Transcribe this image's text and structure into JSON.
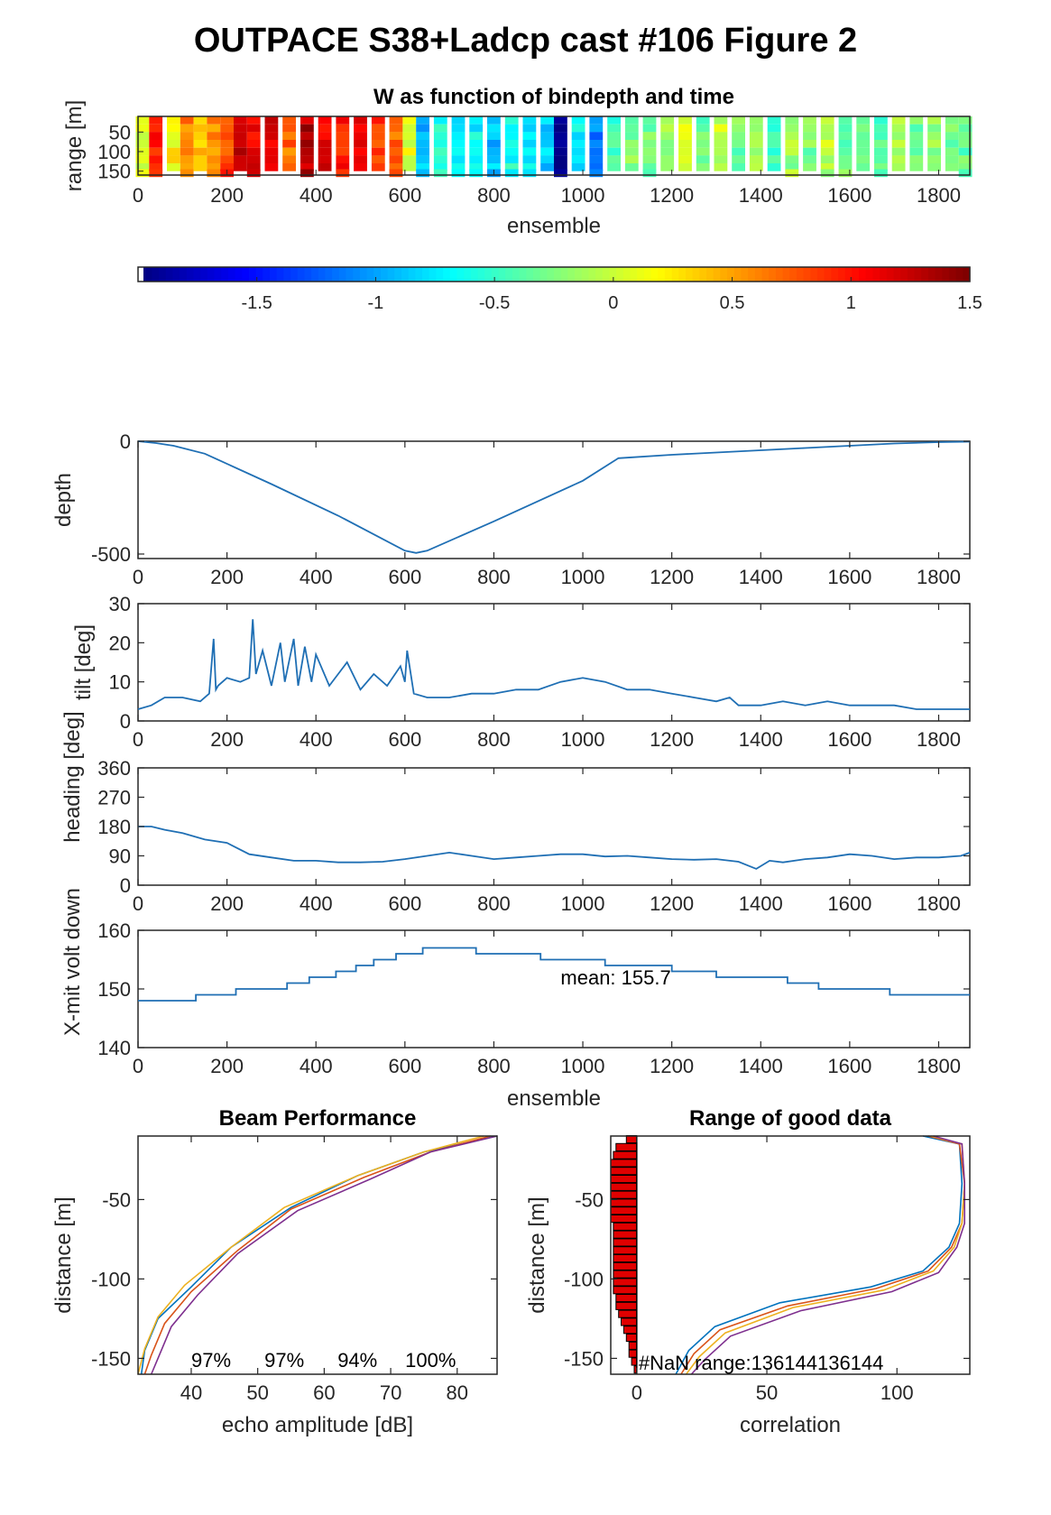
{
  "figure": {
    "title": "OUTPACE S38+Ladcp cast #106 Figure 2"
  },
  "colors": {
    "line_blue": "#1f6fb4",
    "beam1": "#0072bd",
    "beam2": "#d95319",
    "beam3": "#edb120",
    "beam4": "#7e2f8e",
    "nan_bar": "#e00000"
  },
  "chart_data": [
    {
      "id": "w_image",
      "type": "heatmap",
      "title": "W as function of bindepth and time",
      "xlabel": "ensemble",
      "ylabel": "range [m]",
      "xlim": [
        0,
        1870
      ],
      "ylim": [
        160,
        10
      ],
      "xticks": [
        0,
        200,
        400,
        600,
        800,
        1000,
        1200,
        1400,
        1600,
        1800
      ],
      "yticks": [
        50,
        100,
        150
      ],
      "column_mean_w": [
        {
          "x": 10,
          "w": 0.1
        },
        {
          "x": 40,
          "w": 1.0
        },
        {
          "x": 80,
          "w": 0.2
        },
        {
          "x": 110,
          "w": 0.6
        },
        {
          "x": 140,
          "w": 0.4
        },
        {
          "x": 170,
          "w": 0.55
        },
        {
          "x": 200,
          "w": 0.85
        },
        {
          "x": 230,
          "w": 1.25
        },
        {
          "x": 260,
          "w": 1.1
        },
        {
          "x": 300,
          "w": 1.2
        },
        {
          "x": 340,
          "w": 0.7
        },
        {
          "x": 380,
          "w": 1.3
        },
        {
          "x": 420,
          "w": 1.15
        },
        {
          "x": 460,
          "w": 1.0
        },
        {
          "x": 500,
          "w": 1.2
        },
        {
          "x": 540,
          "w": 0.9
        },
        {
          "x": 580,
          "w": 0.75
        },
        {
          "x": 610,
          "w": 0.1
        },
        {
          "x": 640,
          "w": -0.9
        },
        {
          "x": 680,
          "w": -0.6
        },
        {
          "x": 720,
          "w": -0.8
        },
        {
          "x": 760,
          "w": -0.7
        },
        {
          "x": 800,
          "w": -0.9
        },
        {
          "x": 840,
          "w": -0.6
        },
        {
          "x": 880,
          "w": -0.75
        },
        {
          "x": 920,
          "w": -0.85
        },
        {
          "x": 950,
          "w": -1.9
        },
        {
          "x": 990,
          "w": -0.7
        },
        {
          "x": 1030,
          "w": -1.1
        },
        {
          "x": 1070,
          "w": -0.5
        },
        {
          "x": 1110,
          "w": -0.25
        },
        {
          "x": 1150,
          "w": -0.3
        },
        {
          "x": 1190,
          "w": -0.2
        },
        {
          "x": 1230,
          "w": 0.05
        },
        {
          "x": 1270,
          "w": -0.35
        },
        {
          "x": 1310,
          "w": 0.0
        },
        {
          "x": 1350,
          "w": -0.3
        },
        {
          "x": 1390,
          "w": -0.1
        },
        {
          "x": 1430,
          "w": -0.4
        },
        {
          "x": 1470,
          "w": -0.15
        },
        {
          "x": 1510,
          "w": -0.25
        },
        {
          "x": 1550,
          "w": -0.05
        },
        {
          "x": 1590,
          "w": -0.3
        },
        {
          "x": 1630,
          "w": -0.2
        },
        {
          "x": 1670,
          "w": -0.4
        },
        {
          "x": 1710,
          "w": -0.1
        },
        {
          "x": 1750,
          "w": -0.3
        },
        {
          "x": 1790,
          "w": -0.15
        },
        {
          "x": 1830,
          "w": -0.25
        },
        {
          "x": 1860,
          "w": -0.35
        }
      ]
    },
    {
      "id": "colorbar",
      "type": "colorbar",
      "clim": [
        -2,
        1.5
      ],
      "ticks": [
        -1.5,
        -1,
        -0.5,
        0,
        0.5,
        1,
        1.5
      ],
      "ticklabels": [
        "-1.5",
        "-1",
        "-0.5",
        "0",
        "0.5",
        "1",
        "1.5"
      ]
    },
    {
      "id": "depth",
      "type": "line",
      "ylabel": "depth",
      "xlim": [
        0,
        1870
      ],
      "ylim": [
        -520,
        0
      ],
      "xticks": [
        0,
        200,
        400,
        600,
        800,
        1000,
        1200,
        1400,
        1600,
        1800
      ],
      "yticks": [
        0,
        -500
      ],
      "x": [
        0,
        40,
        80,
        150,
        300,
        450,
        600,
        625,
        650,
        800,
        1000,
        1080,
        1200,
        1300,
        1400,
        1500,
        1600,
        1700,
        1800,
        1870
      ],
      "y": [
        0,
        -8,
        -20,
        -55,
        -190,
        -330,
        -485,
        -495,
        -485,
        -355,
        -175,
        -75,
        -60,
        -50,
        -40,
        -30,
        -20,
        -10,
        -4,
        -2
      ]
    },
    {
      "id": "tilt",
      "type": "line",
      "ylabel": "tilt [deg]",
      "xlim": [
        0,
        1870
      ],
      "ylim": [
        0,
        30
      ],
      "xticks": [
        0,
        200,
        400,
        600,
        800,
        1000,
        1200,
        1400,
        1600,
        1800
      ],
      "yticks": [
        0,
        10,
        20,
        30
      ],
      "x": [
        0,
        30,
        60,
        100,
        140,
        160,
        170,
        175,
        180,
        200,
        230,
        250,
        258,
        265,
        280,
        300,
        320,
        330,
        350,
        360,
        375,
        390,
        400,
        430,
        470,
        500,
        530,
        560,
        590,
        600,
        605,
        620,
        650,
        700,
        750,
        800,
        850,
        900,
        950,
        1000,
        1050,
        1100,
        1150,
        1200,
        1250,
        1300,
        1330,
        1350,
        1400,
        1450,
        1500,
        1550,
        1600,
        1650,
        1700,
        1750,
        1800,
        1850,
        1870
      ],
      "y": [
        3,
        4,
        6,
        6,
        5,
        7,
        21,
        8,
        9,
        11,
        10,
        11,
        26,
        12,
        18,
        9,
        20,
        10,
        21,
        9,
        19,
        10,
        17,
        9,
        15,
        8,
        12,
        9,
        14,
        10,
        18,
        7,
        6,
        6,
        7,
        7,
        8,
        8,
        10,
        11,
        10,
        8,
        8,
        7,
        6,
        5,
        6,
        4,
        4,
        5,
        4,
        5,
        4,
        4,
        4,
        3,
        3,
        3,
        3
      ]
    },
    {
      "id": "heading",
      "type": "line",
      "ylabel": "heading [deg]",
      "xlim": [
        0,
        1870
      ],
      "ylim": [
        0,
        360
      ],
      "xticks": [
        0,
        200,
        400,
        600,
        800,
        1000,
        1200,
        1400,
        1600,
        1800
      ],
      "yticks": [
        0,
        90,
        180,
        270,
        360
      ],
      "x": [
        0,
        30,
        60,
        100,
        150,
        200,
        250,
        300,
        350,
        400,
        450,
        500,
        550,
        600,
        650,
        700,
        750,
        800,
        850,
        900,
        950,
        1000,
        1050,
        1100,
        1150,
        1200,
        1250,
        1300,
        1350,
        1390,
        1420,
        1450,
        1500,
        1550,
        1600,
        1650,
        1700,
        1750,
        1800,
        1850,
        1870
      ],
      "y": [
        180,
        180,
        170,
        160,
        140,
        130,
        95,
        85,
        75,
        75,
        70,
        70,
        72,
        80,
        90,
        100,
        90,
        80,
        85,
        90,
        95,
        95,
        88,
        90,
        85,
        80,
        78,
        80,
        72,
        50,
        75,
        70,
        80,
        85,
        95,
        90,
        80,
        85,
        85,
        90,
        100
      ]
    },
    {
      "id": "xmit_volt",
      "type": "line",
      "ylabel": "X-mit volt down",
      "xlabel": "ensemble",
      "xlim": [
        0,
        1870
      ],
      "ylim": [
        140,
        160
      ],
      "xticks": [
        0,
        200,
        400,
        600,
        800,
        1000,
        1200,
        1400,
        1600,
        1800
      ],
      "yticks": [
        140,
        150,
        160
      ],
      "annotation": "mean: 155.7",
      "annotation_at": [
        950,
        152
      ],
      "x": [
        0,
        130,
        130,
        220,
        220,
        335,
        335,
        385,
        385,
        445,
        445,
        490,
        490,
        530,
        530,
        580,
        580,
        640,
        640,
        760,
        760,
        905,
        905,
        1050,
        1050,
        1200,
        1200,
        1300,
        1300,
        1460,
        1460,
        1530,
        1530,
        1690,
        1690,
        1870
      ],
      "y": [
        148,
        148,
        149,
        149,
        150,
        150,
        151,
        151,
        152,
        152,
        153,
        153,
        154,
        154,
        155,
        155,
        156,
        156,
        157,
        157,
        156,
        156,
        155,
        155,
        154,
        154,
        153,
        153,
        152,
        152,
        151,
        151,
        150,
        150,
        149,
        149
      ]
    },
    {
      "id": "beam_performance",
      "type": "line",
      "title": "Beam Performance",
      "xlabel": "echo amplitude [dB]",
      "ylabel": "distance [m]",
      "xlim": [
        32,
        86
      ],
      "ylim": [
        -160,
        -10
      ],
      "xticks": [
        40,
        50,
        60,
        70,
        80
      ],
      "yticks": [
        -50,
        -100,
        -150
      ],
      "percent_labels": [
        "97%",
        "97%",
        "94%",
        "100%"
      ],
      "percent_label_x": [
        43,
        54,
        65,
        76
      ],
      "series": [
        {
          "x": [
            86,
            75,
            65,
            55,
            46,
            40,
            35,
            33,
            32.5
          ],
          "y": [
            -10,
            -20,
            -35,
            -55,
            -80,
            -105,
            -125,
            -145,
            -160
          ]
        },
        {
          "x": [
            85,
            76,
            66,
            55,
            47,
            40,
            36,
            34,
            33
          ],
          "y": [
            -10,
            -20,
            -36,
            -56,
            -82,
            -108,
            -128,
            -148,
            -160
          ]
        },
        {
          "x": [
            84,
            75,
            65,
            54,
            46,
            39,
            35,
            33,
            32
          ],
          "y": [
            -10,
            -20,
            -35,
            -55,
            -80,
            -104,
            -124,
            -144,
            -160
          ]
        },
        {
          "x": [
            86,
            76,
            67,
            56,
            47,
            41,
            37,
            35,
            34
          ],
          "y": [
            -10,
            -20,
            -37,
            -57,
            -84,
            -110,
            -130,
            -150,
            -160
          ]
        }
      ]
    },
    {
      "id": "range_good_data",
      "type": "line",
      "title": "Range of good data",
      "xlabel": "correlation",
      "ylabel": "distance [m]",
      "xlim": [
        -10,
        128
      ],
      "ylim": [
        -160,
        -10
      ],
      "xticks": [
        0,
        50,
        100
      ],
      "yticks": [
        -50,
        -100,
        -150
      ],
      "annotation": "#NaN range:136144136144",
      "annotation_at": [
        0,
        -155
      ],
      "nan_bars": [
        {
          "y": -12,
          "len": 4
        },
        {
          "y": -17,
          "len": 8
        },
        {
          "y": -22,
          "len": 9
        },
        {
          "y": -27,
          "len": 10
        },
        {
          "y": -32,
          "len": 10
        },
        {
          "y": -37,
          "len": 10
        },
        {
          "y": -42,
          "len": 10
        },
        {
          "y": -47,
          "len": 10
        },
        {
          "y": -52,
          "len": 10
        },
        {
          "y": -57,
          "len": 10
        },
        {
          "y": -62,
          "len": 10
        },
        {
          "y": -67,
          "len": 9
        },
        {
          "y": -72,
          "len": 9
        },
        {
          "y": -77,
          "len": 9
        },
        {
          "y": -82,
          "len": 9
        },
        {
          "y": -87,
          "len": 9
        },
        {
          "y": -92,
          "len": 9
        },
        {
          "y": -97,
          "len": 9
        },
        {
          "y": -102,
          "len": 9
        },
        {
          "y": -107,
          "len": 9
        },
        {
          "y": -112,
          "len": 8
        },
        {
          "y": -117,
          "len": 8
        },
        {
          "y": -122,
          "len": 7
        },
        {
          "y": -127,
          "len": 6
        },
        {
          "y": -132,
          "len": 5
        },
        {
          "y": -137,
          "len": 4
        },
        {
          "y": -142,
          "len": 3
        },
        {
          "y": -147,
          "len": 3
        },
        {
          "y": -152,
          "len": 2
        },
        {
          "y": -157,
          "len": 1
        }
      ],
      "series": [
        {
          "x": [
            110,
            124,
            125,
            124,
            120,
            110,
            90,
            55,
            30,
            20,
            15
          ],
          "y": [
            -10,
            -15,
            -40,
            -65,
            -80,
            -95,
            -105,
            -115,
            -130,
            -145,
            -160
          ]
        },
        {
          "x": [
            112,
            124,
            126,
            125,
            121,
            112,
            92,
            58,
            32,
            22,
            17
          ],
          "y": [
            -10,
            -15,
            -40,
            -65,
            -80,
            -95,
            -106,
            -117,
            -132,
            -147,
            -160
          ]
        },
        {
          "x": [
            113,
            125,
            126,
            125,
            122,
            114,
            95,
            60,
            34,
            24,
            19
          ],
          "y": [
            -10,
            -15,
            -40,
            -65,
            -80,
            -95,
            -107,
            -118,
            -134,
            -149,
            -160
          ]
        },
        {
          "x": [
            114,
            125,
            126,
            126,
            123,
            116,
            98,
            63,
            36,
            26,
            21
          ],
          "y": [
            -10,
            -15,
            -40,
            -65,
            -80,
            -96,
            -108,
            -120,
            -136,
            -151,
            -160
          ]
        }
      ]
    }
  ]
}
